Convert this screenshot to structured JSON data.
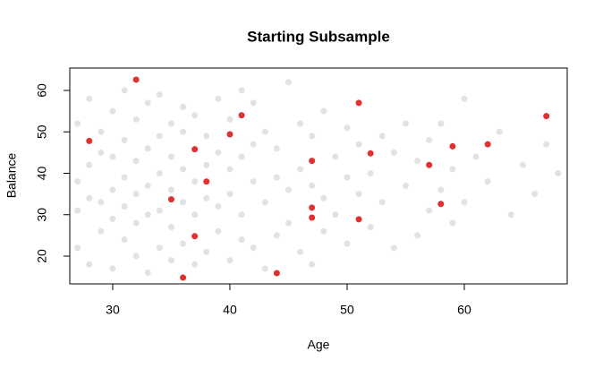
{
  "chart_data": {
    "type": "scatter",
    "title": "Starting Subsample",
    "x_label": "Age",
    "y_label": "Balance",
    "xlim": [
      26.34,
      68.78
    ],
    "ylim": [
      13.3,
      65.4
    ],
    "xticks": [
      30,
      40,
      50,
      60
    ],
    "yticks": [
      20,
      30,
      40,
      50,
      60
    ],
    "series": [
      {
        "color": "rgba(190,190,190,0.45)",
        "x": [
          27,
          27,
          27,
          27,
          28,
          28,
          28,
          28,
          29,
          29,
          29,
          29,
          30,
          30,
          30,
          30,
          30,
          31,
          31,
          31,
          31,
          31,
          32,
          32,
          32,
          32,
          32,
          33,
          33,
          33,
          33,
          33,
          34,
          34,
          34,
          34,
          34,
          35,
          35,
          35,
          35,
          35,
          36,
          36,
          36,
          36,
          36,
          37,
          37,
          37,
          37,
          38,
          38,
          38,
          38,
          39,
          39,
          39,
          39,
          40,
          40,
          40,
          40,
          41,
          41,
          41,
          41,
          42,
          42,
          42,
          42,
          43,
          43,
          43,
          44,
          44,
          44,
          45,
          45,
          45,
          46,
          46,
          46,
          47,
          47,
          47,
          48,
          48,
          48,
          49,
          49,
          50,
          50,
          50,
          51,
          51,
          52,
          52,
          53,
          53,
          54,
          54,
          55,
          55,
          56,
          56,
          57,
          57,
          58,
          58,
          59,
          59,
          60,
          60,
          61,
          62,
          63,
          64,
          65,
          66,
          67,
          68
        ],
        "values": [
          22,
          31,
          38,
          52,
          18,
          34,
          42,
          58,
          26,
          33,
          45,
          50,
          17,
          29,
          36,
          44,
          55,
          24,
          32,
          39,
          48,
          60,
          20,
          28,
          35,
          43,
          53,
          16,
          30,
          37,
          46,
          57,
          22,
          31,
          40,
          49,
          59,
          19,
          27,
          36,
          44,
          52,
          23,
          33,
          41,
          50,
          56,
          18,
          30,
          38,
          54,
          21,
          34,
          42,
          49,
          26,
          32,
          45,
          58,
          19,
          35,
          41,
          53,
          24,
          30,
          44,
          60,
          22,
          38,
          47,
          57,
          17,
          33,
          50,
          25,
          39,
          46,
          28,
          36,
          62,
          21,
          41,
          52,
          18,
          37,
          49,
          26,
          34,
          55,
          30,
          44,
          23,
          39,
          51,
          35,
          47,
          27,
          40,
          33,
          49,
          22,
          45,
          37,
          52,
          25,
          43,
          31,
          48,
          36,
          52,
          28,
          41,
          33,
          58,
          44,
          38,
          50,
          30,
          42,
          35,
          47,
          40
        ]
      },
      {
        "color": "#e03030",
        "x": [
          32,
          28,
          36,
          35,
          37,
          37,
          38,
          40,
          41,
          44,
          47,
          47,
          47,
          51,
          51,
          52,
          57,
          58,
          59,
          62,
          67
        ],
        "values": [
          62.6,
          47.8,
          14.8,
          33.7,
          45.8,
          24.8,
          38,
          49.4,
          54,
          15.9,
          43,
          31.7,
          29.3,
          57,
          28.9,
          44.8,
          42,
          32.6,
          46.5,
          47,
          53.8
        ]
      }
    ]
  }
}
